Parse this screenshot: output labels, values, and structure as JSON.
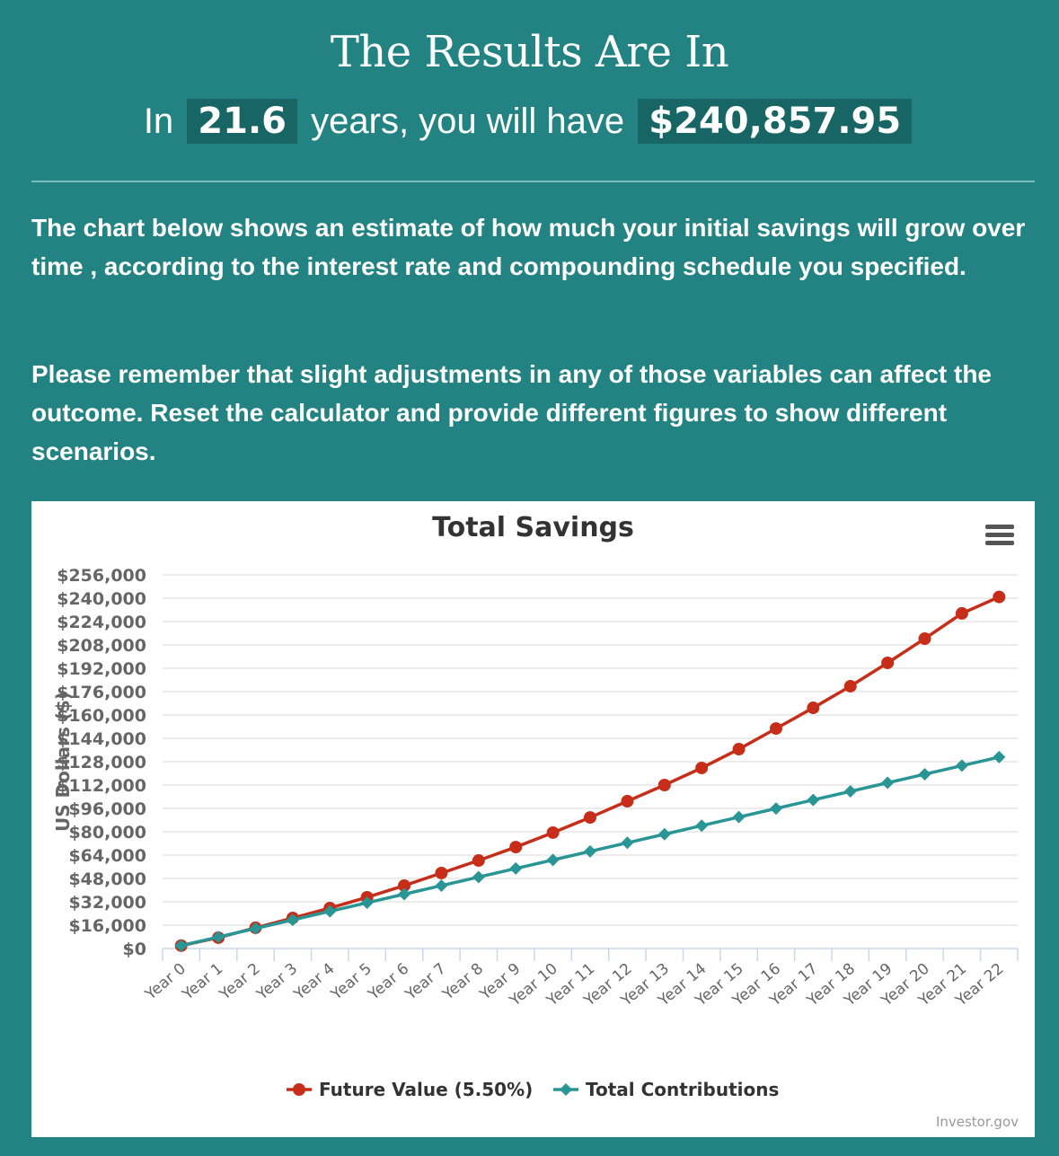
{
  "header": {
    "title": "The Results Are In",
    "summary_prefix": "In",
    "years": "21.6",
    "summary_middle": "years, you will have",
    "amount": "$240,857.95"
  },
  "description": {
    "paragraph1": "The chart below shows an estimate of how much your initial savings will grow over time , according to the interest rate and compounding schedule you specified.",
    "paragraph2": "Please remember that slight adjustments in any of those variables can affect the outcome. Reset the calculator and provide different figures to show different scenarios."
  },
  "chart": {
    "menu_icon": "hamburger-menu-icon",
    "credit": "Investor.gov"
  },
  "colors": {
    "background": "#238383",
    "future_value": "#c62e1a",
    "contributions": "#2a9595"
  },
  "chart_data": {
    "type": "line",
    "title": "Total Savings",
    "xlabel": "",
    "ylabel": "US Dollars ($)",
    "ylim": [
      0,
      256000
    ],
    "yticks": [
      "$0",
      "$16,000",
      "$32,000",
      "$48,000",
      "$64,000",
      "$80,000",
      "$96,000",
      "$112,000",
      "$128,000",
      "$144,000",
      "$160,000",
      "$176,000",
      "$192,000",
      "$208,000",
      "$224,000",
      "$240,000",
      "$256,000"
    ],
    "categories": [
      "Year 0",
      "Year 1",
      "Year 2",
      "Year 3",
      "Year 4",
      "Year 5",
      "Year 6",
      "Year 7",
      "Year 8",
      "Year 9",
      "Year 10",
      "Year 11",
      "Year 12",
      "Year 13",
      "Year 14",
      "Year 15",
      "Year 16",
      "Year 17",
      "Year 18",
      "Year 19",
      "Year 20",
      "Year 21",
      "Year 22"
    ],
    "series": [
      {
        "name": "Future Value (5.50%)",
        "marker": "circle",
        "color": "#c62e1a",
        "values": [
          2000,
          7400,
          14200,
          20900,
          27700,
          35100,
          43100,
          51700,
          60300,
          69500,
          79400,
          89800,
          100900,
          112000,
          123700,
          136600,
          150700,
          164900,
          179700,
          195700,
          212300,
          229600,
          240858
        ]
      },
      {
        "name": "Total Contributions",
        "marker": "diamond",
        "color": "#2a9595",
        "values": [
          2000,
          7870,
          13740,
          19610,
          25480,
          31350,
          37220,
          43090,
          48960,
          54830,
          60700,
          66570,
          72440,
          78310,
          84180,
          90050,
          95920,
          101790,
          107660,
          113530,
          119400,
          125270,
          131140
        ]
      }
    ],
    "grid": true,
    "legend_position": "bottom"
  }
}
